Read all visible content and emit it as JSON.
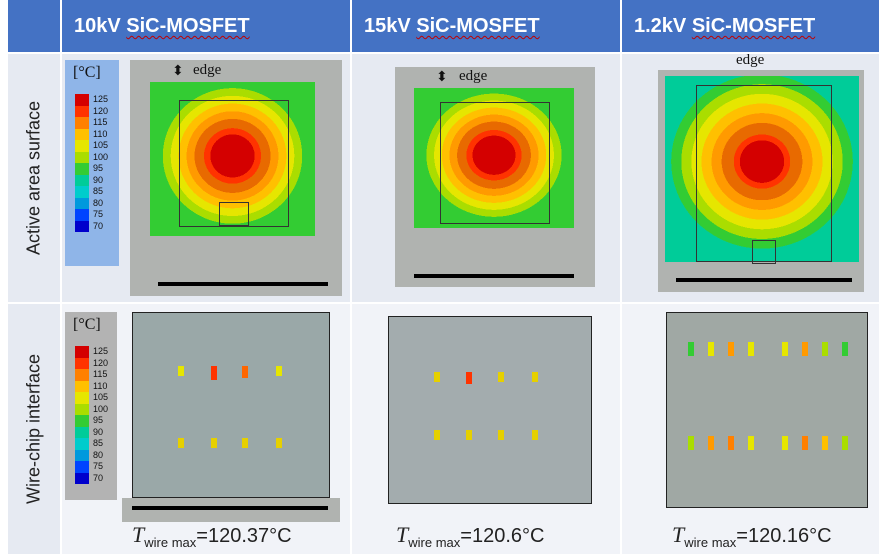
{
  "headers": {
    "col1": {
      "voltage": "10kV",
      "device": "SiC-MOSFET"
    },
    "col2": {
      "voltage": "15kV",
      "device": "SiC-MOSFET"
    },
    "col3": {
      "voltage": "1.2kV",
      "device": "SiC-MOSFET"
    }
  },
  "rows": {
    "active": "Active area surface",
    "wire": "Wire-chip interface"
  },
  "legend": {
    "unit": "[°C]",
    "ticks": [
      "125",
      "120",
      "115",
      "110",
      "105",
      "100",
      "95",
      "90",
      "85",
      "80",
      "75",
      "70"
    ],
    "colors": [
      "#d40000",
      "#ff3300",
      "#ff8000",
      "#ffc000",
      "#e6e600",
      "#aadd00",
      "#33cc33",
      "#00cc99",
      "#00cccc",
      "#0099dd",
      "#0044ff",
      "#0000cc"
    ]
  },
  "edge_label": "edge",
  "results": {
    "t_symbol": "T",
    "t_sub": "wire max",
    "col1": "=120.37°C",
    "col2": "=120.6°C",
    "col3": "=120.16°C"
  }
}
